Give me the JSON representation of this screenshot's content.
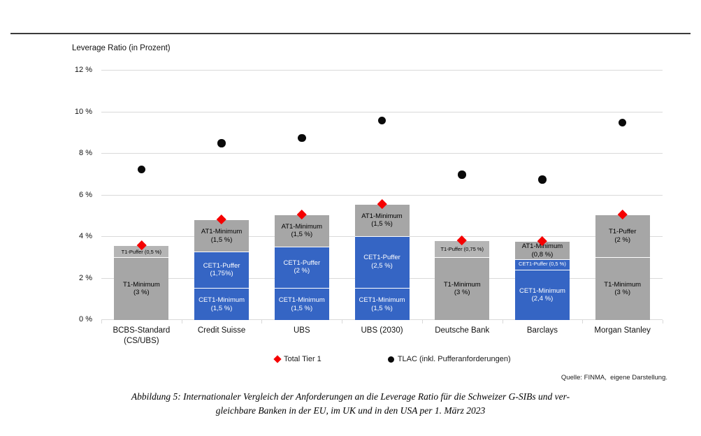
{
  "chart": {
    "title": "Leverage Ratio (in Prozent)",
    "source": "Quelle: FINMA,  eigene Darstellung."
  },
  "legend": {
    "items": [
      {
        "label": "Total Tier 1",
        "marker": "diamond-icon",
        "color": "#f50000"
      },
      {
        "label": "TLAC (inkl. Pufferanforderungen)",
        "marker": "circle-icon",
        "color": "#0a0a0a"
      }
    ]
  },
  "caption": {
    "line1": "Abbildung 5: Internationaler Vergleich der Anforderungen an die Leverage Ratio für die Schweizer G-SIBs und ver-",
    "line2": "gleichbare Banken in der EU, im UK und in den USA per 1. März 2023"
  },
  "chart_data": {
    "type": "bar",
    "stacked": true,
    "title": "Leverage Ratio (in Prozent)",
    "ylim": [
      0,
      12
    ],
    "ytick_step": 2,
    "ytick_suffix": " %",
    "grid": true,
    "legend_position": "bottom",
    "colors": {
      "gray": "#a6a6a6",
      "gray_light": "#b5b5b5",
      "blue": "#3565c4",
      "grid": "#d9d9d9",
      "red": "#f50000",
      "black": "#0a0a0a",
      "text_dark": "#000000",
      "text_light": "#ffffff"
    },
    "categories": [
      [
        "BCBS-Standard",
        "(CS/UBS)"
      ],
      [
        "Credit Suisse"
      ],
      [
        "UBS"
      ],
      [
        "UBS (2030)"
      ],
      [
        "Deutsche Bank"
      ],
      [
        "Barclays"
      ],
      [
        "Morgan Stanley"
      ]
    ],
    "bars": [
      {
        "segments": [
          {
            "label": "T1-Minimum",
            "sublabel": "(3 %)",
            "value": 3,
            "color": "gray",
            "text": "dark"
          },
          {
            "label": "T1-Puffer (0,5 %)",
            "value": 0.5,
            "color": "gray_light",
            "text": "dark",
            "small": true
          }
        ]
      },
      {
        "segments": [
          {
            "label": "CET1-Minimum",
            "sublabel": "(1,5 %)",
            "value": 1.5,
            "color": "blue",
            "text": "light"
          },
          {
            "label": "CET1-Puffer",
            "sublabel": "(1,75%)",
            "value": 1.75,
            "color": "blue",
            "text": "light"
          },
          {
            "label": "AT1-Minimum",
            "sublabel": "(1,5 %)",
            "value": 1.5,
            "color": "gray",
            "text": "dark"
          }
        ]
      },
      {
        "segments": [
          {
            "label": "CET1-Minimum",
            "sublabel": "(1,5 %)",
            "value": 1.5,
            "color": "blue",
            "text": "light"
          },
          {
            "label": "CET1-Puffer",
            "sublabel": "(2 %)",
            "value": 2,
            "color": "blue",
            "text": "light"
          },
          {
            "label": "AT1-Minimum",
            "sublabel": "(1,5 %)",
            "value": 1.5,
            "color": "gray",
            "text": "dark"
          }
        ]
      },
      {
        "segments": [
          {
            "label": "CET1-Minimum",
            "sublabel": "(1,5 %)",
            "value": 1.5,
            "color": "blue",
            "text": "light"
          },
          {
            "label": "CET1-Puffer",
            "sublabel": "(2,5 %)",
            "value": 2.5,
            "color": "blue",
            "text": "light"
          },
          {
            "label": "AT1-Minimum",
            "sublabel": "(1,5 %)",
            "value": 1.5,
            "color": "gray",
            "text": "dark"
          }
        ]
      },
      {
        "segments": [
          {
            "label": "T1-Minimum",
            "sublabel": "(3 %)",
            "value": 3,
            "color": "gray",
            "text": "dark"
          },
          {
            "label": "T1-Puffer (0,75 %)",
            "value": 0.75,
            "color": "gray_light",
            "text": "dark",
            "small": true
          }
        ]
      },
      {
        "segments": [
          {
            "label": "CET1-Minimum",
            "sublabel": "(2,4 %)",
            "value": 2.4,
            "color": "blue",
            "text": "light"
          },
          {
            "label": "CET1-Puffer (0,5 %)",
            "value": 0.5,
            "color": "blue",
            "text": "light",
            "small": true
          },
          {
            "label": "AT1-Minimum",
            "sublabel": "(0,8 %)",
            "value": 0.8,
            "color": "gray",
            "text": "dark"
          }
        ]
      },
      {
        "segments": [
          {
            "label": "T1-Minimum",
            "sublabel": "(3 %)",
            "value": 3,
            "color": "gray",
            "text": "dark"
          },
          {
            "label": "T1-Puffer",
            "sublabel": "(2 %)",
            "value": 2,
            "color": "gray",
            "text": "dark"
          }
        ]
      }
    ],
    "series": [
      {
        "name": "Total Tier 1",
        "marker": "diamond",
        "values": [
          3.5,
          4.75,
          5,
          5.5,
          3.75,
          3.7,
          5
        ]
      },
      {
        "name": "TLAC (inkl. Pufferanforderungen)",
        "marker": "circle",
        "values": [
          7.25,
          8.5,
          8.75,
          9.6,
          7.0,
          6.75,
          9.5
        ]
      }
    ]
  }
}
